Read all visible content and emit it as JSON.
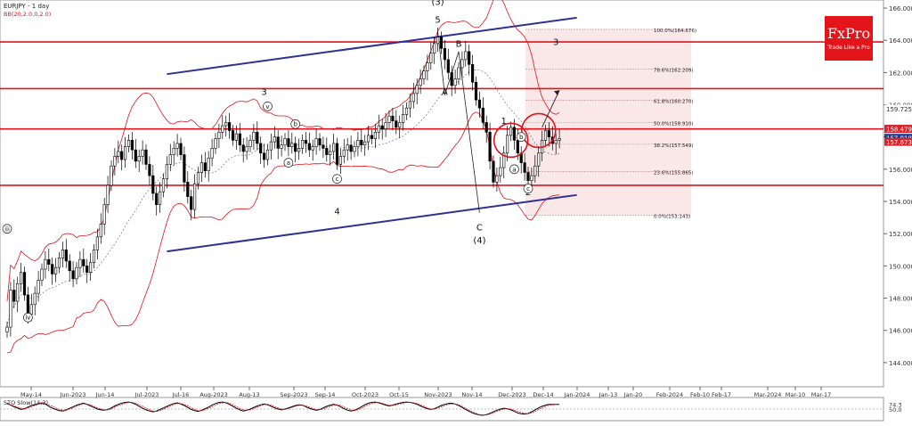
{
  "chart_data": {
    "type": "candlestick",
    "title": "EURJPY - 1 day",
    "indicator": "BB(20,2.0,0,2.0)",
    "oscillator": "STO Slow(14,3)",
    "y_ticks": [
      144,
      146,
      148,
      150,
      152,
      154,
      156,
      158,
      160,
      162,
      164,
      166
    ],
    "ylim": [
      142.5,
      166.5
    ],
    "x_ticks": [
      "May-14",
      "Jun-2023",
      "Jun-14",
      "Jul-2023",
      "Jul-16",
      "Aug-2023",
      "Aug-13",
      "Sep-2023",
      "Sep-14",
      "Oct-2023",
      "Oct-15",
      "Nov-2023",
      "Nov-14",
      "Dec-2023",
      "Dec-14",
      "Jan-2024",
      "Jan-13",
      "Jan-20",
      "Feb-2024",
      "Feb-10",
      "Feb-17",
      "Mar-2024",
      "Mar-10",
      "Mar-17"
    ],
    "price_labels": [
      {
        "text": "159.725",
        "value": 159.725,
        "color": "#ffffff"
      },
      {
        "text": "158.479",
        "value": 158.479,
        "color": "#d7232a"
      },
      {
        "text": "157.918",
        "value": 157.918,
        "color": "#1f3b8c"
      },
      {
        "text": "157.673",
        "value": 157.673,
        "color": "#d7232a"
      }
    ],
    "horizontal_levels": [
      163.9,
      161.0,
      158.5,
      155.0
    ],
    "fib_levels": [
      {
        "text": "100.0%(164.676)",
        "value": 164.676
      },
      {
        "text": "78.6%(162.209)",
        "value": 162.209
      },
      {
        "text": "61.8%(160.270)",
        "value": 160.27
      },
      {
        "text": "50.0%(158.910)",
        "value": 158.91
      },
      {
        "text": "38.2%(157.549)",
        "value": 157.549
      },
      {
        "text": "23.6%(155.865)",
        "value": 155.865
      },
      {
        "text": "0.0%(153.143)",
        "value": 153.143
      }
    ],
    "wave_labels": [
      {
        "text": "(3)",
        "i": 124,
        "v": 166.2
      },
      {
        "text": "5",
        "i": 124,
        "v": 165.1
      },
      {
        "text": "B",
        "i": 130,
        "v": 163.6
      },
      {
        "text": "A",
        "i": 126,
        "v": 160.6
      },
      {
        "text": "3",
        "i": 158,
        "v": 163.7
      },
      {
        "text": "3",
        "i": 74,
        "v": 160.6
      },
      {
        "text": "4",
        "i": 95,
        "v": 153.2
      },
      {
        "text": "C",
        "i": 136,
        "v": 152.2
      },
      {
        "text": "(4)",
        "i": 136,
        "v": 151.4
      },
      {
        "text": "1",
        "i": 143,
        "v": 158.8
      },
      {
        "text": "2",
        "i": 150,
        "v": 154.4
      }
    ],
    "circled_labels": [
      {
        "text": "v",
        "i": 75,
        "v": 159.9
      },
      {
        "text": "a",
        "i": 81,
        "v": 156.4
      },
      {
        "text": "b",
        "i": 83,
        "v": 158.8
      },
      {
        "text": "c",
        "i": 95,
        "v": 155.4
      },
      {
        "text": "a",
        "i": 146,
        "v": 156.0
      },
      {
        "text": "b",
        "i": 148,
        "v": 158.0
      },
      {
        "text": "c",
        "i": 150,
        "v": 154.8
      },
      {
        "text": "iv",
        "i": 6,
        "v": 146.8
      },
      {
        "text": "iii",
        "i": 0,
        "v": 152.3
      }
    ],
    "channel_upper": [
      {
        "i": 46,
        "v": 161.9
      },
      {
        "i": 164,
        "v": 165.4
      }
    ],
    "channel_lower": [
      {
        "i": 46,
        "v": 150.9
      },
      {
        "i": 164,
        "v": 154.4
      }
    ],
    "arrow": {
      "from": {
        "i": 154,
        "v": 158.6
      },
      "to": {
        "i": 159,
        "v": 160.9
      }
    },
    "closes": [
      146.2,
      148.5,
      147.8,
      148.9,
      149.6,
      148.2,
      147.0,
      147.6,
      148.3,
      149.1,
      149.8,
      150.4,
      150.1,
      149.5,
      149.9,
      150.5,
      151.0,
      150.3,
      149.7,
      149.2,
      149.9,
      150.4,
      150.0,
      149.6,
      150.2,
      151.0,
      151.8,
      152.6,
      153.8,
      155.0,
      156.2,
      156.8,
      157.1,
      156.6,
      157.4,
      157.8,
      157.2,
      156.5,
      156.8,
      157.2,
      156.3,
      155.6,
      154.5,
      153.8,
      154.6,
      155.4,
      156.3,
      156.9,
      157.3,
      157.6,
      156.9,
      155.2,
      154.3,
      153.5,
      155.1,
      155.8,
      156.4,
      155.9,
      156.7,
      157.3,
      157.9,
      158.3,
      158.7,
      158.9,
      158.4,
      157.8,
      158.2,
      157.5,
      157.1,
      157.4,
      157.8,
      158.3,
      157.6,
      157.0,
      156.6,
      157.2,
      157.7,
      158.0,
      157.3,
      157.5,
      157.9,
      157.4,
      157.6,
      157.1,
      157.3,
      157.8,
      157.6,
      157.2,
      157.4,
      157.9,
      157.5,
      157.3,
      156.9,
      157.1,
      157.6,
      156.3,
      156.8,
      157.2,
      157.5,
      157.1,
      157.4,
      157.8,
      157.5,
      157.7,
      158.1,
      157.9,
      158.3,
      158.7,
      158.5,
      158.9,
      159.3,
      159.0,
      158.6,
      158.9,
      159.4,
      159.8,
      160.2,
      160.7,
      161.2,
      161.6,
      162.1,
      162.6,
      163.2,
      163.8,
      164.2,
      163.5,
      162.8,
      162.0,
      161.2,
      161.6,
      162.3,
      162.8,
      163.3,
      162.5,
      161.4,
      160.3,
      159.8,
      158.9,
      158.3,
      156.5,
      155.2,
      155.6,
      156.1,
      157.0,
      158.1,
      158.6,
      157.8,
      157.0,
      156.4,
      155.8,
      155.3,
      155.6,
      156.2,
      157.0,
      157.8,
      158.4,
      158.0,
      157.6,
      157.8,
      157.9
    ],
    "stoch_ylim": [
      0,
      100
    ],
    "stoch_ticks": [
      50.0,
      74.3
    ],
    "stoch_k": [
      80,
      70,
      62,
      55,
      48,
      52,
      60,
      68,
      72,
      78,
      82,
      76,
      64,
      55,
      48,
      42,
      40,
      46,
      54,
      62,
      70,
      76,
      80,
      74,
      66,
      58,
      50,
      46,
      44,
      48,
      56,
      66,
      74,
      80,
      84,
      86,
      82,
      74,
      64,
      54,
      46,
      40,
      36,
      40,
      48,
      56,
      64,
      72,
      78,
      82,
      76,
      68,
      58,
      48,
      42,
      38,
      44,
      52,
      60,
      70,
      78,
      84,
      86,
      82,
      74,
      64,
      54,
      46,
      40,
      44,
      50,
      58,
      66,
      72,
      76,
      72,
      64,
      56,
      50,
      46,
      50,
      56,
      62,
      68,
      72,
      70,
      62,
      54,
      48,
      44,
      48,
      56,
      64,
      70,
      74,
      70,
      62,
      52,
      44,
      40,
      44,
      52,
      62,
      72,
      80,
      84,
      86,
      82,
      76,
      70,
      66,
      70,
      76,
      80,
      84,
      86,
      84,
      80,
      74,
      66,
      58,
      52,
      48,
      52,
      60,
      68,
      74,
      78,
      80,
      76,
      68,
      58,
      48,
      38,
      30,
      24,
      20,
      18,
      22,
      28,
      36,
      44,
      50,
      54,
      52,
      46,
      38,
      30,
      26,
      24,
      28,
      36,
      46,
      56,
      64,
      70,
      74,
      74,
      74,
      74
    ],
    "stoch_d": [
      76,
      72,
      66,
      60,
      54,
      52,
      56,
      62,
      68,
      74,
      78,
      78,
      72,
      64,
      56,
      48,
      44,
      44,
      50,
      56,
      64,
      70,
      76,
      76,
      72,
      64,
      56,
      50,
      46,
      46,
      52,
      60,
      68,
      74,
      80,
      84,
      84,
      80,
      72,
      64,
      54,
      46,
      40,
      38,
      42,
      50,
      58,
      66,
      72,
      78,
      78,
      74,
      66,
      56,
      48,
      42,
      42,
      46,
      54,
      62,
      70,
      78,
      82,
      84,
      80,
      72,
      62,
      54,
      46,
      44,
      46,
      52,
      60,
      66,
      72,
      74,
      70,
      62,
      56,
      50,
      48,
      52,
      58,
      64,
      68,
      70,
      66,
      60,
      52,
      48,
      46,
      50,
      58,
      64,
      70,
      72,
      68,
      60,
      52,
      46,
      42,
      46,
      54,
      64,
      72,
      78,
      82,
      84,
      80,
      74,
      70,
      68,
      72,
      76,
      80,
      84,
      84,
      82,
      78,
      72,
      64,
      56,
      50,
      50,
      56,
      62,
      68,
      74,
      76,
      76,
      72,
      64,
      54,
      44,
      36,
      28,
      22,
      20,
      20,
      24,
      30,
      38,
      44,
      50,
      52,
      50,
      44,
      38,
      32,
      28,
      26,
      30,
      38,
      48,
      56,
      64,
      70,
      72,
      73,
      74
    ]
  },
  "brand": {
    "name": "FxPro",
    "tagline": "Trade Like a Pro"
  },
  "colors": {
    "bullish": "#000000",
    "bearish": "#000000",
    "accent": "#e3151a",
    "channel": "#2e3192",
    "levels": "#e0141b"
  }
}
